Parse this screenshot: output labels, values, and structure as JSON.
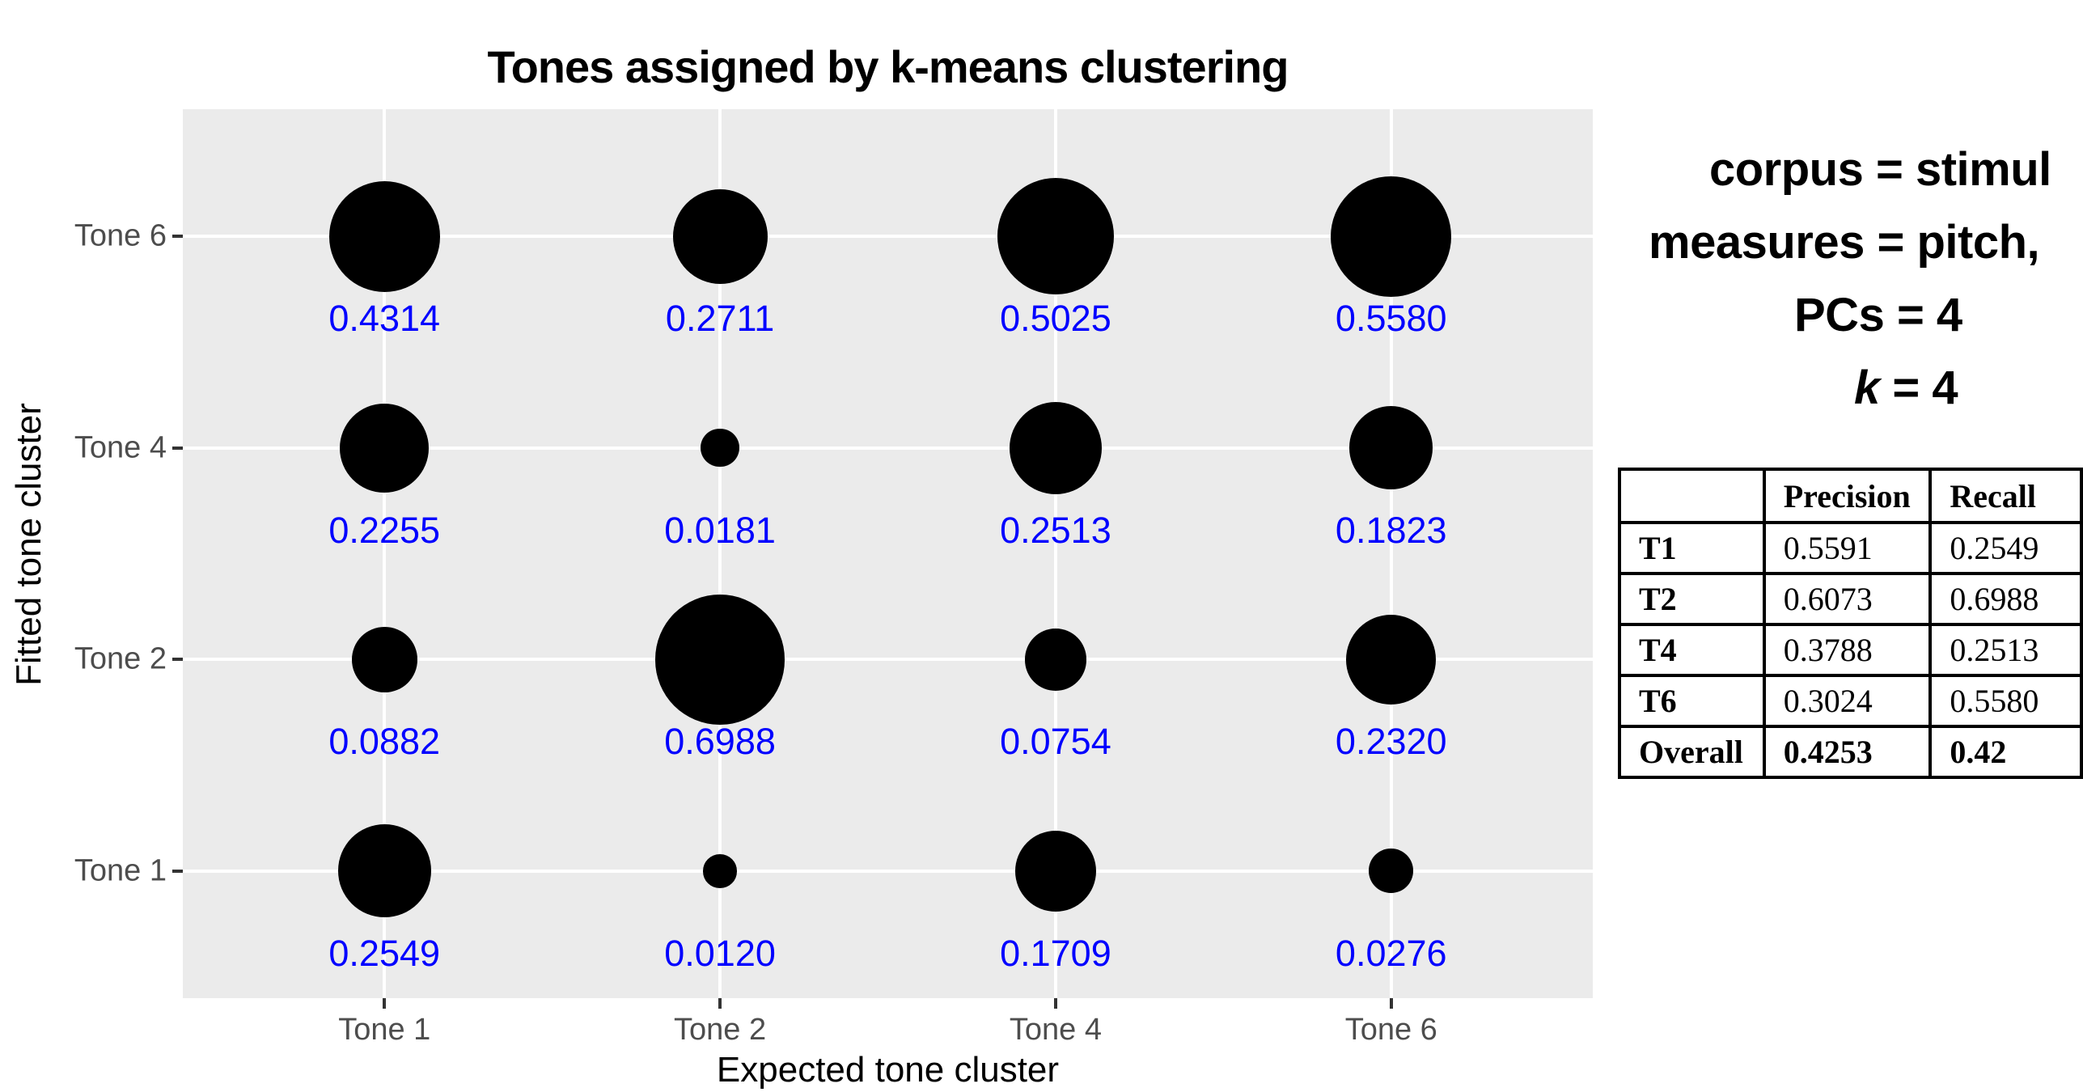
{
  "chart_data": {
    "type": "bubble",
    "title": "Tones assigned by k-means clustering",
    "xlabel": "Expected tone cluster",
    "ylabel": "Fitted tone cluster",
    "x_categories": [
      "Tone 1",
      "Tone 2",
      "Tone 4",
      "Tone 6"
    ],
    "y_categories_top_to_bottom": [
      "Tone 6",
      "Tone 4",
      "Tone 2",
      "Tone 1"
    ],
    "rows": [
      {
        "fitted": "Tone 6",
        "values": [
          "0.4314",
          "0.2711",
          "0.5025",
          "0.5580"
        ]
      },
      {
        "fitted": "Tone 4",
        "values": [
          "0.2255",
          "0.0181",
          "0.2513",
          "0.1823"
        ]
      },
      {
        "fitted": "Tone 2",
        "values": [
          "0.0882",
          "0.6988",
          "0.0754",
          "0.2320"
        ]
      },
      {
        "fitted": "Tone 1",
        "values": [
          "0.2549",
          "0.0120",
          "0.1709",
          "0.0276"
        ]
      }
    ],
    "value_label_color": "#0000ff",
    "bubble_color": "#000000",
    "panel_background": "#ebebeb",
    "grid_color": "#ffffff",
    "grid": "major-on",
    "legend_position": "none",
    "size_encoding": "bubble area grows with value"
  },
  "params_panel": {
    "line1": "corpus = stimul",
    "line2": "measures = pitch,",
    "line3": "PCs = 4",
    "line4_italic": "k",
    "line4_rest": " = 4"
  },
  "metrics_table": {
    "headers": [
      "",
      "Precision",
      "Recall"
    ],
    "rows": [
      {
        "label": "T1",
        "precision": "0.5591",
        "recall": "0.2549",
        "bold": false
      },
      {
        "label": "T2",
        "precision": "0.6073",
        "recall": "0.6988",
        "bold": false
      },
      {
        "label": "T4",
        "precision": "0.3788",
        "recall": "0.2513",
        "bold": false
      },
      {
        "label": "T6",
        "precision": "0.3024",
        "recall": "0.5580",
        "bold": false
      },
      {
        "label": "Overall",
        "precision": "0.4253",
        "recall": "0.42",
        "bold": true
      }
    ]
  }
}
